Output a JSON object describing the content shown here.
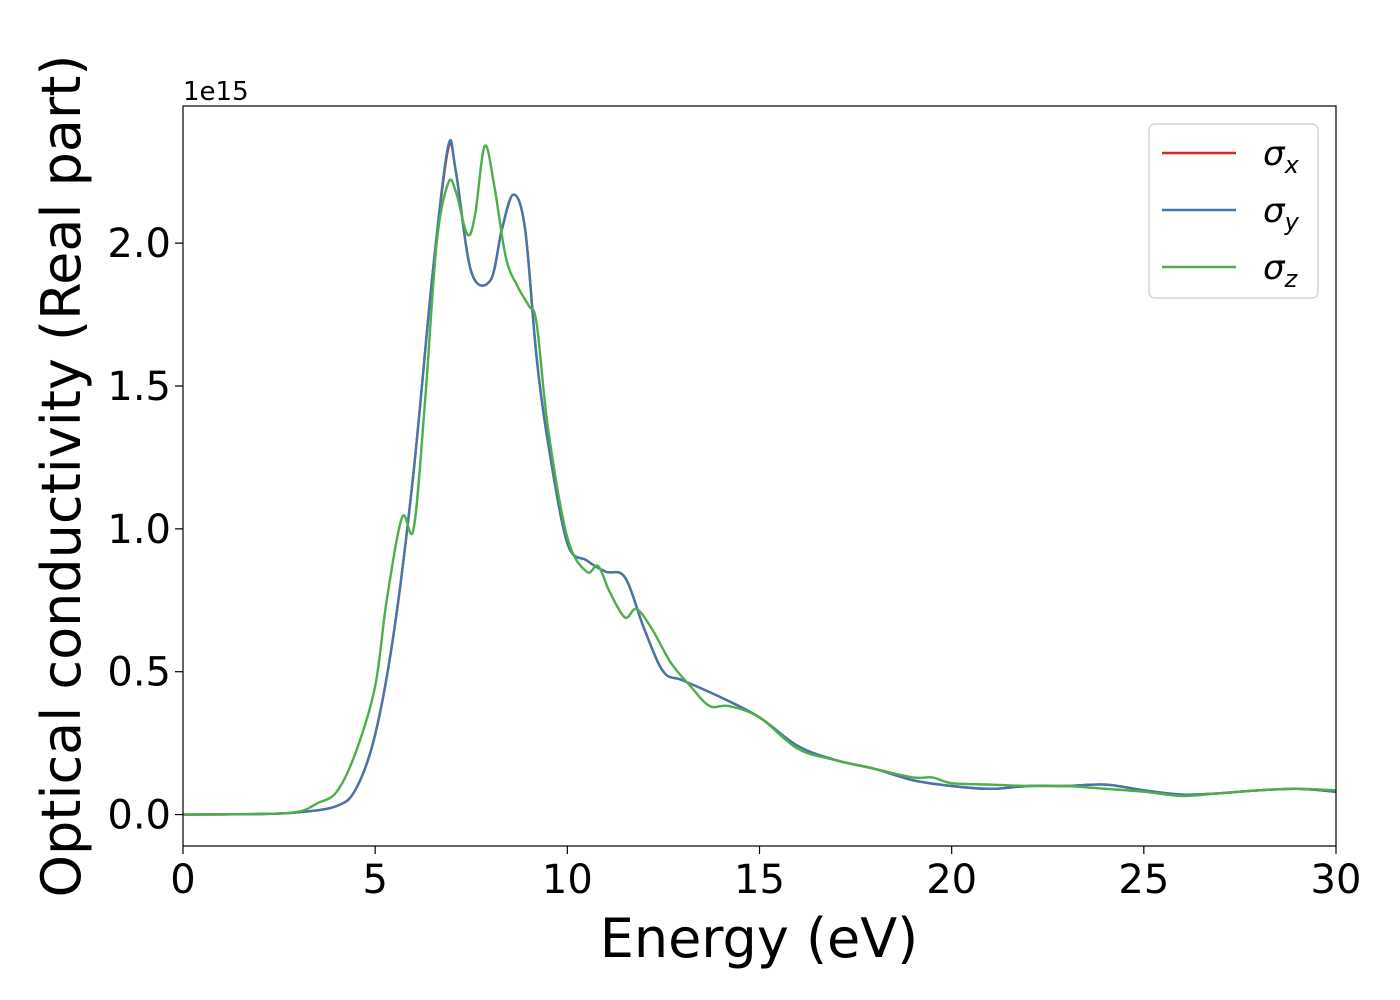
{
  "chart_data": {
    "type": "line",
    "xlabel": "Energy (eV)",
    "ylabel": "Optical conductivity (Real part)",
    "y_offset_label": "1e15",
    "xlim": [
      0,
      30
    ],
    "ylim": [
      -0.11,
      2.48
    ],
    "x_ticks": [
      "0",
      "5",
      "10",
      "15",
      "20",
      "25",
      "30"
    ],
    "y_ticks": [
      "0.0",
      "0.5",
      "1.0",
      "1.5",
      "2.0"
    ],
    "grid": false,
    "legend_position": "top-right",
    "series": [
      {
        "name": "σ_x",
        "legend_symbol": "σ",
        "legend_sub": "x",
        "color": "#d62728",
        "points": [
          [
            0,
            0
          ],
          [
            2,
            0.002
          ],
          [
            3,
            0.008
          ],
          [
            4,
            0.03
          ],
          [
            4.5,
            0.09
          ],
          [
            5,
            0.28
          ],
          [
            5.5,
            0.65
          ],
          [
            6,
            1.2
          ],
          [
            6.5,
            1.9
          ],
          [
            6.9,
            2.33
          ],
          [
            7.1,
            2.25
          ],
          [
            7.5,
            1.9
          ],
          [
            8,
            1.87
          ],
          [
            8.3,
            2.05
          ],
          [
            8.6,
            2.17
          ],
          [
            8.9,
            2.05
          ],
          [
            9.2,
            1.6
          ],
          [
            9.5,
            1.3
          ],
          [
            10,
            0.95
          ],
          [
            10.5,
            0.89
          ],
          [
            11,
            0.85
          ],
          [
            11.5,
            0.83
          ],
          [
            12,
            0.65
          ],
          [
            12.5,
            0.5
          ],
          [
            13,
            0.47
          ],
          [
            14,
            0.41
          ],
          [
            15,
            0.34
          ],
          [
            16,
            0.24
          ],
          [
            17,
            0.19
          ],
          [
            18,
            0.16
          ],
          [
            19,
            0.12
          ],
          [
            20,
            0.1
          ],
          [
            21,
            0.09
          ],
          [
            22,
            0.1
          ],
          [
            23,
            0.1
          ],
          [
            24,
            0.105
          ],
          [
            25,
            0.085
          ],
          [
            26,
            0.07
          ],
          [
            27,
            0.075
          ],
          [
            28,
            0.085
          ],
          [
            29,
            0.09
          ],
          [
            30,
            0.08
          ]
        ]
      },
      {
        "name": "σ_y",
        "legend_symbol": "σ",
        "legend_sub": "y",
        "color": "#4477aa",
        "points": [
          [
            0,
            0
          ],
          [
            2,
            0.002
          ],
          [
            3,
            0.008
          ],
          [
            4,
            0.03
          ],
          [
            4.5,
            0.09
          ],
          [
            5,
            0.28
          ],
          [
            5.5,
            0.65
          ],
          [
            6,
            1.2
          ],
          [
            6.5,
            1.9
          ],
          [
            6.9,
            2.34
          ],
          [
            7.1,
            2.25
          ],
          [
            7.5,
            1.9
          ],
          [
            8,
            1.87
          ],
          [
            8.3,
            2.05
          ],
          [
            8.6,
            2.17
          ],
          [
            8.9,
            2.05
          ],
          [
            9.2,
            1.6
          ],
          [
            9.5,
            1.3
          ],
          [
            10,
            0.95
          ],
          [
            10.5,
            0.89
          ],
          [
            11,
            0.85
          ],
          [
            11.5,
            0.83
          ],
          [
            12,
            0.65
          ],
          [
            12.5,
            0.5
          ],
          [
            13,
            0.47
          ],
          [
            14,
            0.41
          ],
          [
            15,
            0.34
          ],
          [
            16,
            0.24
          ],
          [
            17,
            0.19
          ],
          [
            18,
            0.16
          ],
          [
            19,
            0.12
          ],
          [
            20,
            0.1
          ],
          [
            21,
            0.09
          ],
          [
            22,
            0.1
          ],
          [
            23,
            0.1
          ],
          [
            24,
            0.105
          ],
          [
            25,
            0.085
          ],
          [
            26,
            0.07
          ],
          [
            27,
            0.075
          ],
          [
            28,
            0.085
          ],
          [
            29,
            0.09
          ],
          [
            30,
            0.08
          ]
        ]
      },
      {
        "name": "σ_z",
        "legend_symbol": "σ",
        "legend_sub": "z",
        "color": "#4daf4a",
        "points": [
          [
            0,
            0
          ],
          [
            2,
            0.002
          ],
          [
            3,
            0.01
          ],
          [
            3.5,
            0.04
          ],
          [
            4,
            0.08
          ],
          [
            4.5,
            0.22
          ],
          [
            5,
            0.45
          ],
          [
            5.3,
            0.75
          ],
          [
            5.7,
            1.04
          ],
          [
            6,
            1.0
          ],
          [
            6.3,
            1.45
          ],
          [
            6.6,
            2.0
          ],
          [
            6.9,
            2.21
          ],
          [
            7.1,
            2.18
          ],
          [
            7.4,
            2.03
          ],
          [
            7.6,
            2.1
          ],
          [
            7.85,
            2.34
          ],
          [
            8.1,
            2.2
          ],
          [
            8.4,
            1.95
          ],
          [
            8.7,
            1.85
          ],
          [
            9.0,
            1.78
          ],
          [
            9.2,
            1.72
          ],
          [
            9.5,
            1.35
          ],
          [
            10,
            0.97
          ],
          [
            10.5,
            0.85
          ],
          [
            10.8,
            0.87
          ],
          [
            11.1,
            0.78
          ],
          [
            11.5,
            0.69
          ],
          [
            11.8,
            0.72
          ],
          [
            12.2,
            0.65
          ],
          [
            12.7,
            0.53
          ],
          [
            13.2,
            0.45
          ],
          [
            13.7,
            0.38
          ],
          [
            14.2,
            0.38
          ],
          [
            15,
            0.34
          ],
          [
            16,
            0.23
          ],
          [
            17,
            0.19
          ],
          [
            18,
            0.16
          ],
          [
            19,
            0.13
          ],
          [
            19.5,
            0.13
          ],
          [
            20,
            0.11
          ],
          [
            21,
            0.105
          ],
          [
            22,
            0.1
          ],
          [
            23,
            0.1
          ],
          [
            24,
            0.09
          ],
          [
            25,
            0.08
          ],
          [
            26,
            0.065
          ],
          [
            27,
            0.075
          ],
          [
            28,
            0.085
          ],
          [
            29,
            0.09
          ],
          [
            30,
            0.085
          ]
        ]
      }
    ]
  }
}
